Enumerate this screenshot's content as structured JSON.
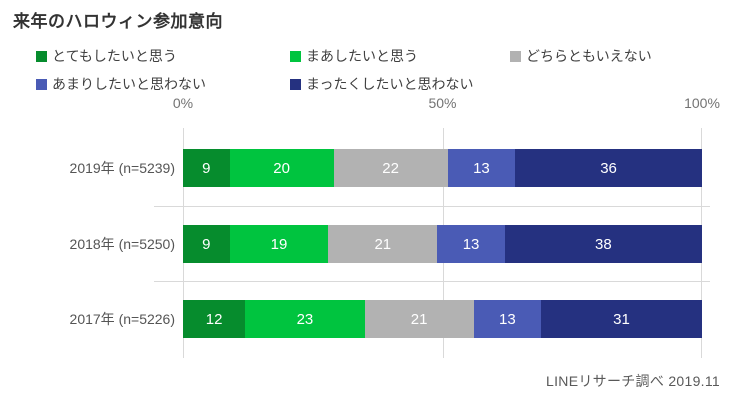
{
  "title": "来年のハロウィン参加意向",
  "source_note": "LINEリサーチ調べ 2019.11",
  "colors": {
    "very_want": "#068C2D",
    "somewhat_want": "#00C43F",
    "neutral": "#B2B2B2",
    "not_really": "#4A5BB5",
    "not_at_all": "#253180",
    "gridline": "#D9D9D9",
    "title_text": "#333333",
    "axis_text": "#737373",
    "bar_label_text": "#FFFFFF"
  },
  "chart_data": {
    "type": "bar",
    "stacked": true,
    "orientation": "horizontal",
    "title": "来年のハロウィン参加意向",
    "categories": [
      "2019年 (n=5239)",
      "2018年 (n=5250)",
      "2017年 (n=5226)"
    ],
    "series": [
      {
        "name": "とてもしたいと思う",
        "color": "#068C2D",
        "values": [
          9,
          9,
          12
        ]
      },
      {
        "name": "まあしたいと思う",
        "color": "#00C43F",
        "values": [
          20,
          19,
          23
        ]
      },
      {
        "name": "どちらともいえない",
        "color": "#B2B2B2",
        "values": [
          22,
          21,
          21
        ]
      },
      {
        "name": "あまりしたいと思わない",
        "color": "#4A5BB5",
        "values": [
          13,
          13,
          13
        ]
      },
      {
        "name": "まったくしたいと思わない",
        "color": "#253180",
        "values": [
          36,
          38,
          31
        ]
      }
    ],
    "x_ticks": [
      "0%",
      "50%",
      "100%"
    ],
    "xlim": [
      0,
      100
    ],
    "unit": "percent",
    "legend_position": "top",
    "grid": "vertical",
    "source_note": "LINEリサーチ調べ 2019.11"
  }
}
